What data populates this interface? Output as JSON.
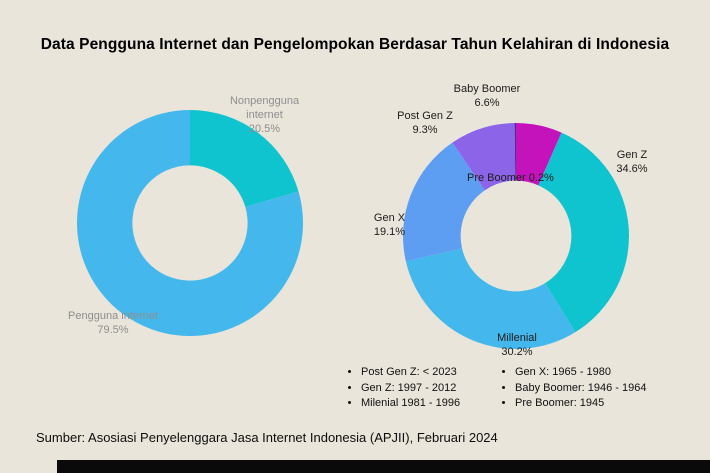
{
  "page": {
    "title": "Data Pengguna Internet dan Pengelompokan Berdasar Tahun Kelahiran di Indonesia",
    "source": "Sumber: Asosiasi Penyelenggara Jasa Internet Indonesia (APJII), Februari 2024",
    "background": "#e9e5da"
  },
  "chart_data": [
    {
      "type": "pie",
      "labels": [
        "Nonpengguna internet",
        "Pengguna internet"
      ],
      "values": [
        20.5,
        79.5
      ],
      "pct_labels": [
        "20.5%",
        "79.5%"
      ],
      "colors": [
        "#0fc4ce",
        "#44b8ec"
      ],
      "donut_hole": 0.51,
      "start_angle_deg": 0,
      "direction": "clockwise",
      "label_color": "#8e8e8e",
      "legend_position": "none"
    },
    {
      "type": "pie",
      "labels": [
        "Baby Boomer",
        "Gen Z",
        "Millenial",
        "Gen X",
        "Post Gen Z",
        "Pre Boomer"
      ],
      "values": [
        6.6,
        34.6,
        30.2,
        19.1,
        9.3,
        0.2
      ],
      "pct_labels": [
        "6.6%",
        "34.6%",
        "30.2%",
        "19.1%",
        "9.3%",
        "0.2%"
      ],
      "colors": [
        "#c513bb",
        "#0fc4ce",
        "#44b8ec",
        "#5e9ef2",
        "#8c64e8",
        "#4b2e9e"
      ],
      "donut_hole": 0.49,
      "start_angle_deg": 0,
      "direction": "clockwise",
      "label_color": "#1c1c1c",
      "legend_position": "below"
    }
  ],
  "legend": {
    "col1": [
      "Post Gen Z: < 2023",
      "Gen Z: 1997 - 2012",
      "Milenial 1981 - 1996"
    ],
    "col2": [
      "Gen X: 1965 - 1980",
      "Baby Boomer: 1946 - 1964",
      "Pre Boomer: 1945"
    ]
  }
}
